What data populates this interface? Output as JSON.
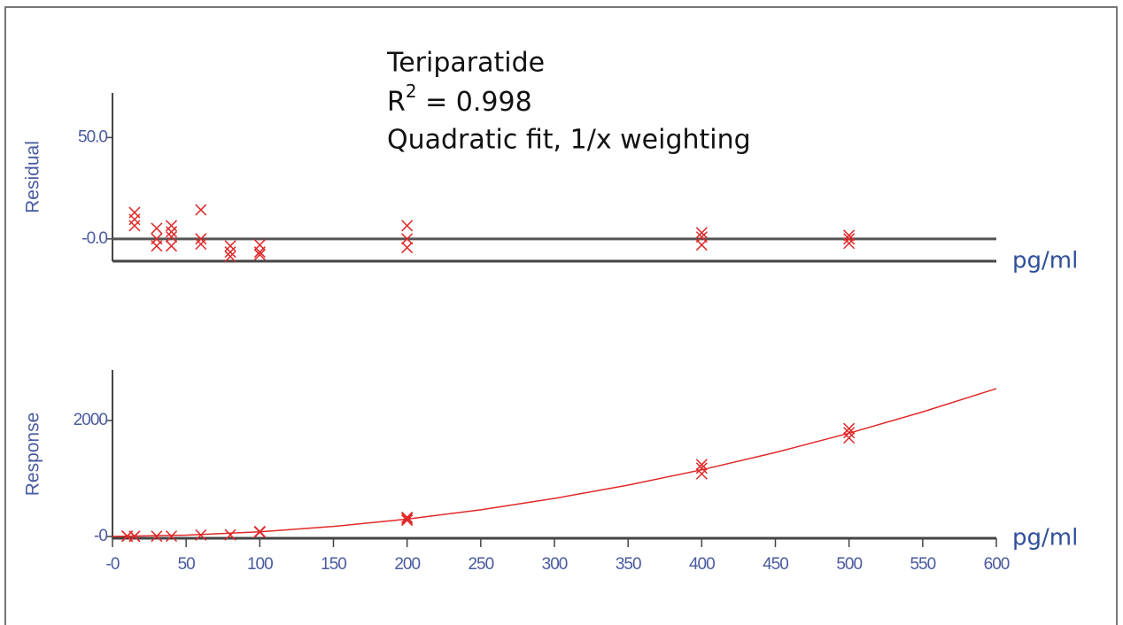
{
  "chart_data": [
    {
      "type": "scatter",
      "title": "Teriparatide",
      "fit_stat": {
        "symbol": "R",
        "superscript": "2",
        "text": " = 0.998"
      },
      "subtitle": "Quadratic fit, 1/x weighting",
      "y_label": "Residual",
      "x_label": "pg/ml",
      "xlim": [
        0,
        600
      ],
      "ylim": [
        -11,
        72
      ],
      "yticks": [
        {
          "value": 50,
          "label": "50.0"
        },
        {
          "value": 0,
          "label": "-0.0"
        }
      ],
      "color": "#e02828",
      "x": [
        15,
        15,
        15,
        30,
        30,
        30,
        40,
        40,
        40,
        40,
        60,
        60,
        60,
        80,
        80,
        80,
        100,
        100,
        100,
        200,
        200,
        200,
        400,
        400,
        400,
        500,
        500,
        500
      ],
      "values": [
        13,
        6.5,
        9.6,
        5.2,
        0,
        -3.5,
        6.5,
        3.5,
        -3.5,
        1,
        14.3,
        0,
        -2.6,
        -3.5,
        -6.5,
        -8.7,
        -3,
        -6.5,
        -7.8,
        6.5,
        0,
        -4.3,
        3,
        0.9,
        -3,
        1.7,
        0,
        -2.2
      ]
    },
    {
      "type": "scatter",
      "y_label": "Response",
      "x_label": "pg/ml",
      "xlim": [
        0,
        600
      ],
      "ylim": [
        -30,
        2870
      ],
      "xticks": [
        {
          "value": 0,
          "label": "-0"
        },
        50,
        100,
        150,
        200,
        250,
        300,
        350,
        400,
        450,
        500,
        550,
        600
      ],
      "yticks": [
        2000,
        {
          "value": 0,
          "label": "-0"
        }
      ],
      "color": "#e02828",
      "x": [
        10,
        10,
        15,
        15,
        30,
        40,
        60,
        80,
        100,
        100,
        200,
        200,
        200,
        400,
        400,
        400,
        500,
        500,
        500
      ],
      "values": [
        3,
        8,
        6,
        2,
        5,
        6,
        25,
        28,
        75,
        85,
        280,
        310,
        330,
        1080,
        1180,
        1240,
        1700,
        1790,
        1860
      ],
      "fit": {
        "x": [
          0,
          50,
          100,
          150,
          200,
          250,
          300,
          350,
          400,
          450,
          500,
          550,
          600
        ],
        "values": [
          0,
          23.4,
          81.3,
          173.4,
          300,
          460.9,
          656.3,
          885.9,
          1150,
          1448.4,
          1781.3,
          2148.4,
          2550
        ]
      }
    }
  ]
}
